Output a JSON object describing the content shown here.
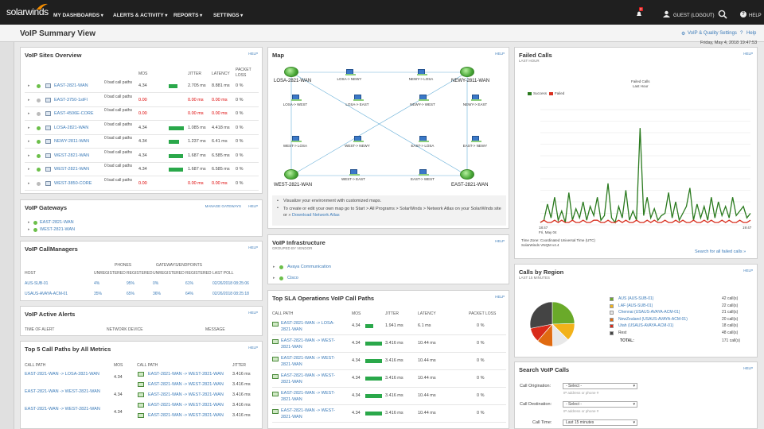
{
  "topbar": {
    "logo": "solarwinds",
    "nav": [
      "MY DASHBOARDS",
      "ALERTS & ACTIVITY",
      "REPORTS",
      "SETTINGS"
    ],
    "notif_count": "2",
    "user": "GUEST (LOGOUT)",
    "help": "HELP"
  },
  "page": {
    "title": "VoIP Summary View",
    "settings_link": "VoIP & Quality Settings",
    "help": "Help",
    "date": "Friday, May 4, 2018 19:47:53"
  },
  "sites": {
    "title": "VoIP Sites Overview",
    "help": "HELP",
    "headers": [
      "MOS",
      "JITTER",
      "LATENCY",
      "PACKET LOSS"
    ],
    "rows": [
      {
        "name": "EAST-2821-WAN",
        "calls": "0 bad call paths",
        "mos": "4.34",
        "jitter": "2.705 ms",
        "jitter_fill": 0.5,
        "latency": "8.881 ms",
        "loss": "0 %",
        "status": "green"
      },
      {
        "name": "EAST-3750-1stFl",
        "calls": "0 bad call paths",
        "mos": "0.00",
        "jitter": "0.00 ms",
        "jitter_fill": 0,
        "latency": "0.00 ms",
        "loss": "0 %",
        "status": "gray"
      },
      {
        "name": "EAST-4506E-CORE",
        "calls": "0 bad call paths",
        "mos": "0.00",
        "jitter": "0.00 ms",
        "jitter_fill": 0,
        "latency": "0.00 ms",
        "loss": "0 %",
        "status": "gray"
      },
      {
        "name": "LOSA-2821-WAN",
        "calls": "0 bad call paths",
        "mos": "4.34",
        "jitter": "1.085 ms",
        "jitter_fill": 0.85,
        "latency": "4.418 ms",
        "loss": "0 %",
        "status": "green"
      },
      {
        "name": "NEWY-2811-WAN",
        "calls": "0 bad call paths",
        "mos": "4.34",
        "jitter": "1.237 ms",
        "jitter_fill": 0.6,
        "latency": "6.41 ms",
        "loss": "0 %",
        "status": "green"
      },
      {
        "name": "WEST-2821-WAN",
        "calls": "0 bad call paths",
        "mos": "4.34",
        "jitter": "1.687 ms",
        "jitter_fill": 0.8,
        "latency": "6.585 ms",
        "loss": "0 %",
        "status": "green"
      },
      {
        "name": "WEST-2821-WAN",
        "calls": "0 bad call paths",
        "mos": "4.34",
        "jitter": "1.687 ms",
        "jitter_fill": 0.8,
        "latency": "6.585 ms",
        "loss": "0 %",
        "status": "green"
      },
      {
        "name": "WEST-3850-CORE",
        "calls": "0 bad call paths",
        "mos": "0.00",
        "jitter": "0.00 ms",
        "jitter_fill": 0,
        "latency": "0.00 ms",
        "loss": "0 %",
        "status": "gray"
      }
    ]
  },
  "gateways": {
    "title": "VoIP Gateways",
    "manage": "MANAGE GATEWAYS",
    "help": "HELP",
    "items": [
      "EAST-2821-WAN",
      "WEST-2821-WAN"
    ]
  },
  "callmanagers": {
    "title": "VoIP CallManagers",
    "help": "HELP",
    "group_phones": "PHONES",
    "group_gw": "GATEWAYS/ENDPOINTS",
    "headers": [
      "HOST",
      "UNREGISTERED",
      "REGISTERED",
      "UNREGISTERED",
      "REGISTERED",
      "LAST POLL"
    ],
    "rows": [
      [
        "AUS-SUB-01",
        "4%",
        "95%",
        "0%",
        "61%",
        "02/26/2018 08:25:06"
      ],
      [
        "USAUS-AVAYA-ACM-01",
        "35%",
        "65%",
        "36%",
        "64%",
        "02/26/2018 08:25:18"
      ]
    ]
  },
  "alerts": {
    "title": "VoIP Active Alerts",
    "help": "HELP",
    "headers": [
      "TIME OF ALERT",
      "NETWORK DEVICE",
      "MESSAGE"
    ]
  },
  "top5": {
    "title": "Top 5 Call Paths by All Metrics",
    "help": "HELP",
    "headers": [
      "CALL PATH",
      "MOS",
      "CALL PATH",
      "JITTER"
    ],
    "left": [
      {
        "path": "EAST-2821-WAN -> LOSA-2821-WAN",
        "mos": "4.34"
      },
      {
        "path": "EAST-2821-WAN -> WEST-2821-WAN",
        "mos": "4.34"
      },
      {
        "path": "EAST-2821-WAN -> WEST-2821-WAN",
        "mos": "4.34"
      }
    ],
    "right": [
      {
        "path": "EAST-2821-WAN -> WEST-2821-WAN",
        "jitter": "3.416 ms"
      },
      {
        "path": "EAST-2821-WAN -> WEST-2821-WAN",
        "jitter": "3.416 ms"
      },
      {
        "path": "EAST-2821-WAN -> WEST-2821-WAN",
        "jitter": "3.416 ms"
      },
      {
        "path": "EAST-2821-WAN -> WEST-2821-WAN",
        "jitter": "3.416 ms"
      },
      {
        "path": "EAST-2821-WAN -> WEST-2821-WAN",
        "jitter": "3.416 ms"
      }
    ]
  },
  "map": {
    "title": "Map",
    "help": "HELP",
    "nodes": {
      "losa": "LOSA-2821-WAN",
      "newy": "NEWY-2811-WAN",
      "west": "WEST-2821-WAN",
      "east": "EAST-2821-WAN"
    },
    "links": {
      "losa_newy": "LOSA-> NEWY",
      "newy_losa": "NEWY-> LOSA",
      "losa_west": "LOSA-> WEST",
      "losa_east": "LOSA-> EAST",
      "newy_west": "NEWY-> WEST",
      "newy_east": "NEWY-> EAST",
      "west_losa": "WEST-> LOSA",
      "west_newy": "WEST-> NEWY",
      "east_losa": "EAST-> LOSA",
      "east_newy": "EAST-> NEWY",
      "west_east": "WEST-> EAST",
      "east_west": "EAST-> WEST"
    },
    "tip1": "Visualize your environment with customized maps.",
    "tip2": "To create or edit your own map go to Start > All Programs > SolarWinds > Network Atlas on your SolarWinds site or",
    "tip_link": "Download Network Atlas"
  },
  "infra": {
    "title": "VoIP Infrastructure",
    "sub": "GROUPED BY VENDOR",
    "help": "HELP",
    "items": [
      "Avaya Communication",
      "Cisco"
    ]
  },
  "ipsla": {
    "title": "Top SLA Operations VoIP Call Paths",
    "help": "HELP",
    "headers": [
      "CALL PATH",
      "MOS",
      "JITTER",
      "LATENCY",
      "PACKET LOSS"
    ],
    "rows": [
      {
        "path": "EAST-2821-WAN -> LOSA-2821-WAN",
        "mos": "4.34",
        "jitter": "1.941 ms",
        "fill": 0.45,
        "latency": "6.1 ms",
        "loss": "0 %"
      },
      {
        "path": "EAST-2821-WAN -> WEST-2821-WAN",
        "mos": "4.34",
        "jitter": "3.416 ms",
        "fill": 0.95,
        "latency": "10.44 ms",
        "loss": "0 %"
      },
      {
        "path": "EAST-2821-WAN -> WEST-2821-WAN",
        "mos": "4.34",
        "jitter": "3.416 ms",
        "fill": 0.95,
        "latency": "10.44 ms",
        "loss": "0 %"
      },
      {
        "path": "EAST-2821-WAN -> WEST-2821-WAN",
        "mos": "4.34",
        "jitter": "3.416 ms",
        "fill": 0.95,
        "latency": "10.44 ms",
        "loss": "0 %"
      },
      {
        "path": "EAST-2821-WAN -> WEST-2821-WAN",
        "mos": "4.34",
        "jitter": "3.416 ms",
        "fill": 0.95,
        "latency": "10.44 ms",
        "loss": "0 %"
      },
      {
        "path": "EAST-2821-WAN -> WEST-2821-WAN",
        "mos": "4.34",
        "jitter": "3.416 ms",
        "fill": 0.95,
        "latency": "10.44 ms",
        "loss": "0 %"
      }
    ]
  },
  "failed": {
    "title": "Failed Calls",
    "sub": "LAST HOUR",
    "help": "HELP",
    "chart_title": "Failed Calls",
    "chart_sub": "Last Hour",
    "legend": [
      "Success",
      "Failed"
    ],
    "x_start": "18:47",
    "x_end": "19:47",
    "x_date": "Fri, May 04",
    "tz1": "Time Zone: Coordinated Universal Time (UTC)",
    "tz2": "SolarWinds VNQM v4.4",
    "link": "Search for all failed calls »",
    "colors": {
      "success": "#2a7a1e",
      "failed": "#d83020"
    }
  },
  "chart_data": {
    "type": "line",
    "title": "Failed Calls",
    "subtitle": "Last Hour",
    "x_ticks": [
      "18:47",
      "19:47"
    ],
    "ylim": [
      0,
      50
    ],
    "series": [
      {
        "name": "Success",
        "values": [
          1,
          2,
          9,
          3,
          12,
          2,
          6,
          1,
          14,
          2,
          7,
          3,
          10,
          2,
          8,
          4,
          12,
          2,
          4,
          18,
          3,
          1,
          8,
          3,
          15,
          2,
          6,
          2,
          42,
          4,
          12,
          3,
          7,
          2,
          4,
          5,
          14,
          3,
          10,
          2,
          5,
          8,
          16,
          2,
          9,
          3,
          8,
          2,
          12,
          3,
          10,
          4,
          8,
          3,
          12,
          4,
          6,
          8,
          3,
          5
        ]
      },
      {
        "name": "Failed",
        "values": [
          1,
          2,
          1,
          1,
          2,
          1,
          2,
          1,
          1,
          2,
          1,
          1,
          2,
          1,
          1,
          2,
          2,
          1,
          1,
          2,
          1,
          1,
          2,
          1,
          2,
          1,
          1,
          2,
          1,
          1,
          2,
          1,
          2,
          1,
          1,
          2,
          1,
          1,
          2,
          1,
          2,
          1,
          1,
          2,
          1,
          1,
          2,
          1,
          2,
          1,
          1,
          2,
          1,
          2,
          1,
          1,
          2,
          1,
          1,
          2
        ]
      }
    ]
  },
  "region": {
    "title": "Calls by Region",
    "sub": "LAST 15 MINUTES",
    "help": "HELP",
    "rows": [
      {
        "name": "AUS (AUS-SUB-01)",
        "calls": "42 call(s)",
        "color": "#6aaa2a",
        "value": 42
      },
      {
        "name": "LAF (AUS-SUB-01)",
        "calls": "22 call(s)",
        "color": "#f2b21a",
        "value": 22
      },
      {
        "name": "Chennai (USAUS-AVAYA-ACM-01)",
        "calls": "21 call(s)",
        "color": "#e8e8e8",
        "value": 21
      },
      {
        "name": "NewZealand (USAUS-AVAYA-ACM-01)",
        "calls": "20 call(s)",
        "color": "#e06a10",
        "value": 20
      },
      {
        "name": "Utah (USAUS-AVAYA-ACM-01)",
        "calls": "18 call(s)",
        "color": "#d82a1a",
        "value": 18
      },
      {
        "name": "Rest",
        "calls": "48 call(s)",
        "color": "#444444",
        "value": 48
      }
    ],
    "total_label": "TOTAL:",
    "total": "171 call(s)"
  },
  "search": {
    "title": "Search VoIP Calls",
    "help": "HELP",
    "orig_label": "Call Origination:",
    "orig_value": "- Select -",
    "orig_placeholder": "IP address or phone #",
    "dest_label": "Call Destination:",
    "dest_value": "- Select -",
    "dest_placeholder": "IP address or phone #",
    "time_label": "Call Time:",
    "time_value": "Last 15 minutes"
  }
}
